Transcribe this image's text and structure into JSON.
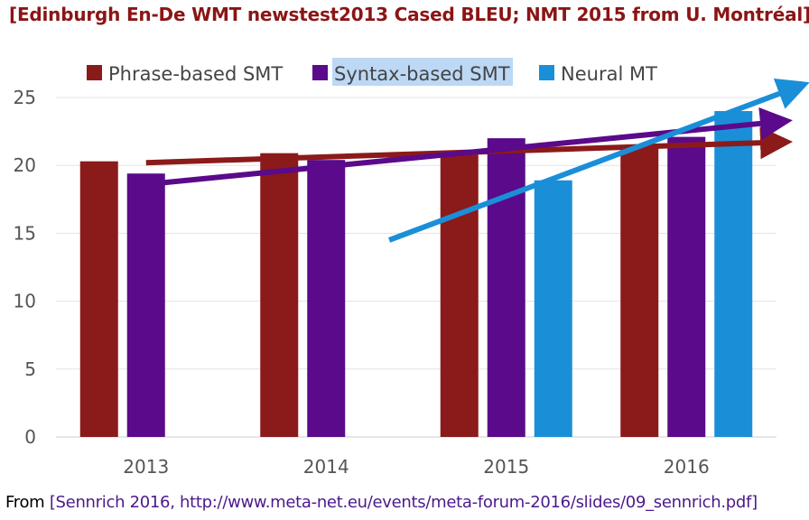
{
  "title": "[Edinburgh En-De WMT newstest2013 Cased BLEU; NMT 2015 from U. Montréal]",
  "footer": {
    "prefix": "From ",
    "citation": "[Sennrich 2016, http://www.meta-net.eu/events/meta-forum-2016/slides/09_sennrich.pdf]"
  },
  "chart_data": {
    "type": "bar",
    "categories": [
      "2013",
      "2014",
      "2015",
      "2016"
    ],
    "series": [
      {
        "name": "Phrase-based SMT",
        "color": "#8b1a1a",
        "values": [
          20.3,
          20.9,
          20.8,
          21.5
        ]
      },
      {
        "name": "Syntax-based SMT",
        "color": "#5a0a8a",
        "values": [
          19.4,
          20.4,
          22.0,
          22.1
        ]
      },
      {
        "name": "Neural MT",
        "color": "#1a8fd8",
        "values": [
          null,
          null,
          18.9,
          24.0
        ]
      }
    ],
    "ylim": [
      0,
      25
    ],
    "yticks": [
      0,
      5,
      10,
      15,
      20,
      25
    ],
    "grid": true,
    "legend": "top",
    "highlighted_legend_entry": "Syntax-based SMT",
    "trend_arrows": [
      {
        "series": "Phrase-based SMT",
        "color": "#8b1a1a",
        "from": [
          2013,
          20.2
        ],
        "to": [
          2016.5,
          21.7
        ]
      },
      {
        "series": "Syntax-based SMT",
        "color": "#5a0a8a",
        "from": [
          2013,
          18.6
        ],
        "to": [
          2016.5,
          23.2
        ]
      },
      {
        "series": "Neural MT",
        "color": "#1a8fd8",
        "from": [
          2014.35,
          14.5
        ],
        "to": [
          2016.6,
          25.7
        ]
      }
    ]
  }
}
